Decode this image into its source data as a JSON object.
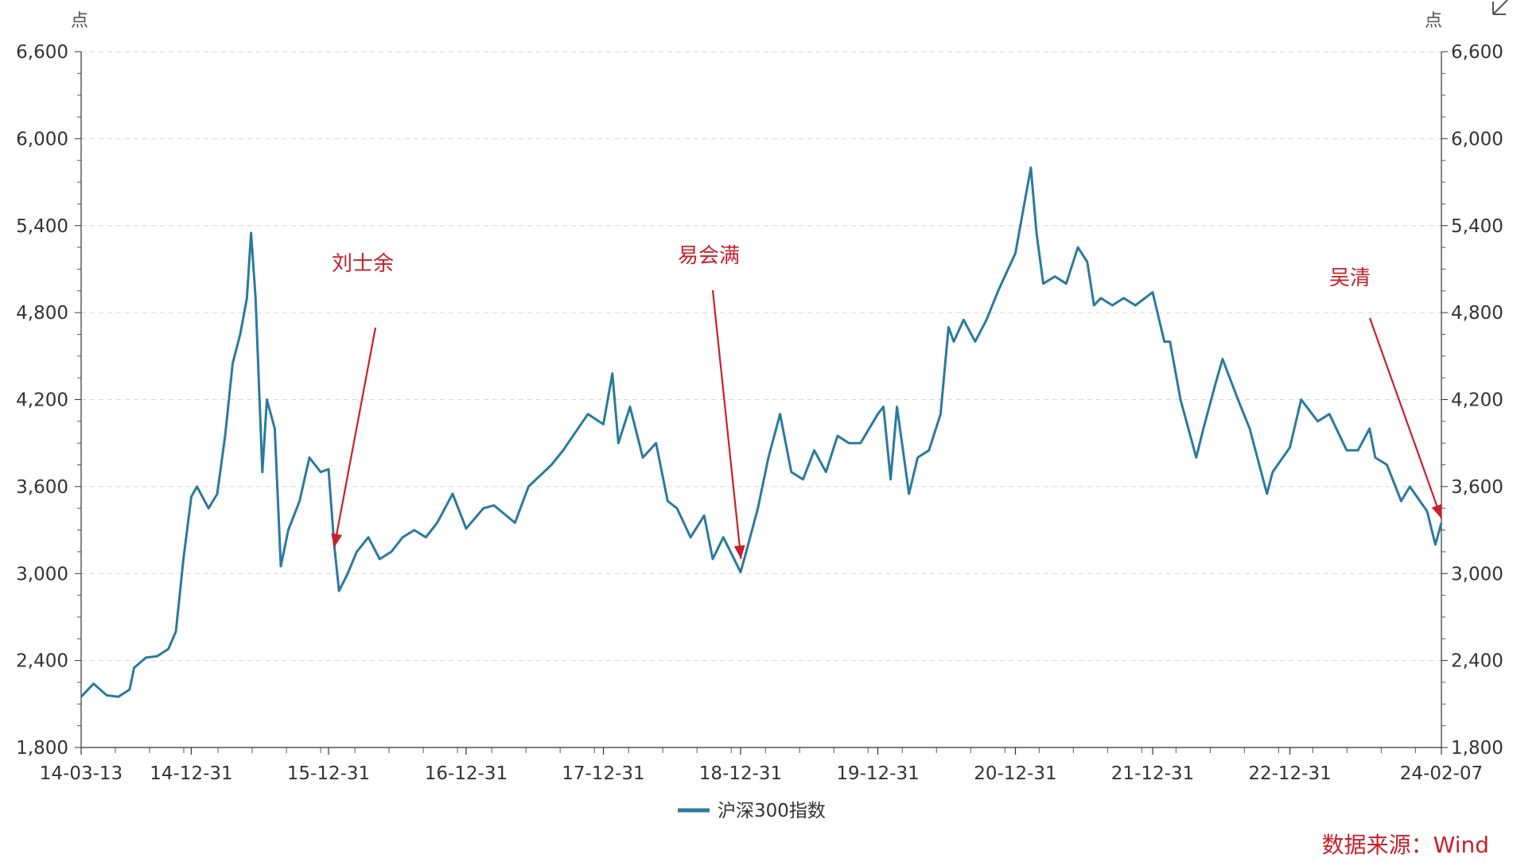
{
  "chart_data": {
    "type": "line",
    "ylabel_left": "点",
    "ylabel_right": "点",
    "ylim": [
      1800,
      6600
    ],
    "yticks": [
      1800,
      2400,
      3000,
      3600,
      4200,
      4800,
      5400,
      6000,
      6600
    ],
    "ytick_labels": [
      "1,800",
      "2,400",
      "3,000",
      "3,600",
      "4,200",
      "4,800",
      "5,400",
      "6,000",
      "6,600"
    ],
    "xlim": [
      "2014-03-13",
      "2024-02-07"
    ],
    "xtick_labels": [
      {
        "date": "2014-03-13",
        "label": "14-03-13"
      },
      {
        "date": "2014-12-31",
        "label": "14-12-31"
      },
      {
        "date": "2015-12-31",
        "label": "15-12-31"
      },
      {
        "date": "2016-12-31",
        "label": "16-12-31"
      },
      {
        "date": "2017-12-31",
        "label": "17-12-31"
      },
      {
        "date": "2018-12-31",
        "label": "18-12-31"
      },
      {
        "date": "2019-12-31",
        "label": "19-12-31"
      },
      {
        "date": "2020-12-31",
        "label": "20-12-31"
      },
      {
        "date": "2021-12-31",
        "label": "21-12-31"
      },
      {
        "date": "2022-12-31",
        "label": "22-12-31"
      },
      {
        "date": "2024-02-07",
        "label": "24-02-07"
      }
    ],
    "grid": true,
    "legend_placement": "bottom-center",
    "series": [
      {
        "name": "沪深300指数",
        "color": "#2a7aa0",
        "points": [
          [
            "2014-03-13",
            2150
          ],
          [
            "2014-04-15",
            2240
          ],
          [
            "2014-05-20",
            2160
          ],
          [
            "2014-06-20",
            2150
          ],
          [
            "2014-07-20",
            2200
          ],
          [
            "2014-08-01",
            2350
          ],
          [
            "2014-09-01",
            2420
          ],
          [
            "2014-10-01",
            2430
          ],
          [
            "2014-10-31",
            2480
          ],
          [
            "2014-11-20",
            2600
          ],
          [
            "2014-12-10",
            3100
          ],
          [
            "2014-12-31",
            3530
          ],
          [
            "2015-01-15",
            3600
          ],
          [
            "2015-02-15",
            3450
          ],
          [
            "2015-03-10",
            3550
          ],
          [
            "2015-03-31",
            3950
          ],
          [
            "2015-04-20",
            4450
          ],
          [
            "2015-05-10",
            4650
          ],
          [
            "2015-05-28",
            4900
          ],
          [
            "2015-06-08",
            5350
          ],
          [
            "2015-06-20",
            4900
          ],
          [
            "2015-07-08",
            3700
          ],
          [
            "2015-07-20",
            4200
          ],
          [
            "2015-08-10",
            4000
          ],
          [
            "2015-08-26",
            3050
          ],
          [
            "2015-09-15",
            3300
          ],
          [
            "2015-10-15",
            3500
          ],
          [
            "2015-11-10",
            3800
          ],
          [
            "2015-12-10",
            3700
          ],
          [
            "2015-12-31",
            3720
          ],
          [
            "2016-01-15",
            3200
          ],
          [
            "2016-01-28",
            2880
          ],
          [
            "2016-02-20",
            3000
          ],
          [
            "2016-03-15",
            3150
          ],
          [
            "2016-04-15",
            3250
          ],
          [
            "2016-05-15",
            3100
          ],
          [
            "2016-06-15",
            3150
          ],
          [
            "2016-07-15",
            3250
          ],
          [
            "2016-08-15",
            3300
          ],
          [
            "2016-09-15",
            3250
          ],
          [
            "2016-10-15",
            3350
          ],
          [
            "2016-11-25",
            3550
          ],
          [
            "2016-12-31",
            3310
          ],
          [
            "2017-02-15",
            3450
          ],
          [
            "2017-03-15",
            3470
          ],
          [
            "2017-05-10",
            3350
          ],
          [
            "2017-06-15",
            3600
          ],
          [
            "2017-08-15",
            3750
          ],
          [
            "2017-09-15",
            3850
          ],
          [
            "2017-11-20",
            4100
          ],
          [
            "2017-12-31",
            4030
          ],
          [
            "2018-01-24",
            4380
          ],
          [
            "2018-02-09",
            3900
          ],
          [
            "2018-03-12",
            4150
          ],
          [
            "2018-04-15",
            3800
          ],
          [
            "2018-05-20",
            3900
          ],
          [
            "2018-06-20",
            3500
          ],
          [
            "2018-07-15",
            3450
          ],
          [
            "2018-08-20",
            3250
          ],
          [
            "2018-09-25",
            3400
          ],
          [
            "2018-10-18",
            3100
          ],
          [
            "2018-11-15",
            3250
          ],
          [
            "2018-12-31",
            3010
          ],
          [
            "2019-01-15",
            3150
          ],
          [
            "2019-02-15",
            3450
          ],
          [
            "2019-03-15",
            3800
          ],
          [
            "2019-04-15",
            4100
          ],
          [
            "2019-05-15",
            3700
          ],
          [
            "2019-06-15",
            3650
          ],
          [
            "2019-07-15",
            3850
          ],
          [
            "2019-08-15",
            3700
          ],
          [
            "2019-09-15",
            3950
          ],
          [
            "2019-10-15",
            3900
          ],
          [
            "2019-11-15",
            3900
          ],
          [
            "2019-12-31",
            4100
          ],
          [
            "2020-01-15",
            4150
          ],
          [
            "2020-02-03",
            3650
          ],
          [
            "2020-02-20",
            4150
          ],
          [
            "2020-03-23",
            3550
          ],
          [
            "2020-04-15",
            3800
          ],
          [
            "2020-05-15",
            3850
          ],
          [
            "2020-06-15",
            4100
          ],
          [
            "2020-07-06",
            4700
          ],
          [
            "2020-07-20",
            4600
          ],
          [
            "2020-08-15",
            4750
          ],
          [
            "2020-09-15",
            4600
          ],
          [
            "2020-10-15",
            4750
          ],
          [
            "2020-11-15",
            4950
          ],
          [
            "2020-12-31",
            5210
          ],
          [
            "2021-01-20",
            5500
          ],
          [
            "2021-02-10",
            5800
          ],
          [
            "2021-02-25",
            5350
          ],
          [
            "2021-03-15",
            5000
          ],
          [
            "2021-04-15",
            5050
          ],
          [
            "2021-05-15",
            5000
          ],
          [
            "2021-06-15",
            5250
          ],
          [
            "2021-07-10",
            5150
          ],
          [
            "2021-07-28",
            4850
          ],
          [
            "2021-08-15",
            4900
          ],
          [
            "2021-09-15",
            4850
          ],
          [
            "2021-10-15",
            4900
          ],
          [
            "2021-11-15",
            4850
          ],
          [
            "2021-12-31",
            4940
          ],
          [
            "2022-01-31",
            4600
          ],
          [
            "2022-02-15",
            4600
          ],
          [
            "2022-03-15",
            4200
          ],
          [
            "2022-04-26",
            3800
          ],
          [
            "2022-05-15",
            4000
          ],
          [
            "2022-06-15",
            4300
          ],
          [
            "2022-07-05",
            4480
          ],
          [
            "2022-08-15",
            4200
          ],
          [
            "2022-09-15",
            4000
          ],
          [
            "2022-10-31",
            3550
          ],
          [
            "2022-11-15",
            3700
          ],
          [
            "2022-12-31",
            3870
          ],
          [
            "2023-01-30",
            4200
          ],
          [
            "2023-03-15",
            4050
          ],
          [
            "2023-04-15",
            4100
          ],
          [
            "2023-05-31",
            3850
          ],
          [
            "2023-06-30",
            3850
          ],
          [
            "2023-07-31",
            4000
          ],
          [
            "2023-08-15",
            3800
          ],
          [
            "2023-09-15",
            3750
          ],
          [
            "2023-10-23",
            3500
          ],
          [
            "2023-11-15",
            3600
          ],
          [
            "2023-12-31",
            3430
          ],
          [
            "2024-01-22",
            3200
          ],
          [
            "2024-02-07",
            3350
          ]
        ]
      }
    ],
    "annotations": [
      {
        "text": "刘士余",
        "arrow_to": [
          "2016-01-15",
          3180
        ],
        "color": "#c8202a"
      },
      {
        "text": "易会满",
        "arrow_to": [
          "2019-01-01",
          3100
        ],
        "color": "#c8202a"
      },
      {
        "text": "吴清",
        "arrow_to": [
          "2024-02-07",
          3380
        ],
        "color": "#c8202a"
      }
    ]
  },
  "source_note": "数据来源：Wind",
  "expand_icon": "expand-arrow-icon"
}
